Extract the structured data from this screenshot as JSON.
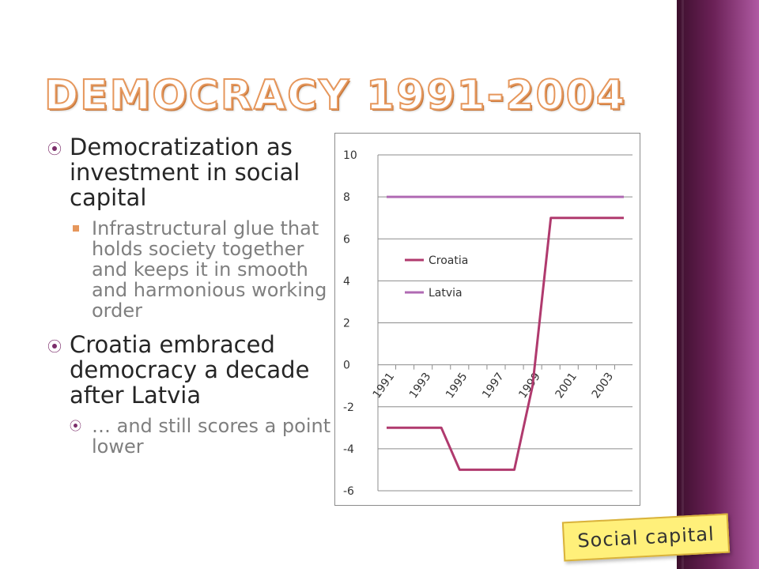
{
  "slide": {
    "title": "Democracy 1991-2004",
    "bullets": [
      {
        "text": "Democratization as investment in social capital",
        "sub": "Infrastructural glue that holds society together and keeps it in smooth and harmonious working order"
      },
      {
        "text": "Croatia embraced democracy a decade after Latvia",
        "sub": "… and still scores a point lower"
      }
    ],
    "tag": "Social capital",
    "colors": {
      "accent": "#7b2d6a",
      "title_outline": "#e6975c",
      "croatia": "#b03a6e",
      "latvia": "#b06ab3"
    }
  },
  "chart_data": {
    "type": "line",
    "x": [
      1991,
      1992,
      1993,
      1994,
      1995,
      1996,
      1997,
      1998,
      1999,
      2000,
      2001,
      2002,
      2003,
      2004
    ],
    "xticks": [
      "1991",
      "1993",
      "1995",
      "1997",
      "1999",
      "2001",
      "2003"
    ],
    "yticks": [
      "10",
      "8",
      "6",
      "4",
      "2",
      "0",
      "-2",
      "-4",
      "-6"
    ],
    "ylim": [
      -6,
      10
    ],
    "series": [
      {
        "name": "Croatia",
        "values": [
          -3,
          -3,
          -3,
          -3,
          -5,
          -5,
          -5,
          -5,
          -1,
          7,
          7,
          7,
          7,
          7
        ]
      },
      {
        "name": "Latvia",
        "values": [
          8,
          8,
          8,
          8,
          8,
          8,
          8,
          8,
          8,
          8,
          8,
          8,
          8,
          8
        ]
      }
    ],
    "legend": "inside-left",
    "grid": true
  }
}
